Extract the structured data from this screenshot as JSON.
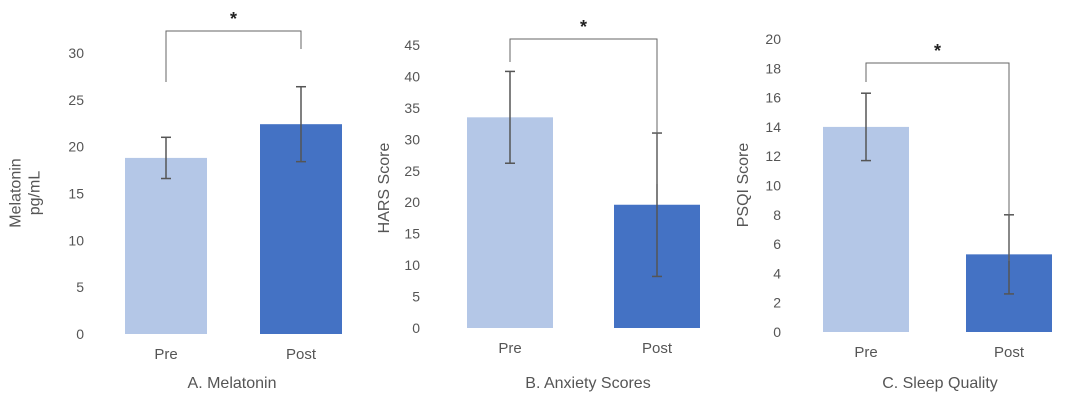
{
  "chart_data": [
    {
      "type": "bar",
      "caption": "A. Melatonin",
      "ylabel": [
        "Melatonin",
        "pg/mL"
      ],
      "categories": [
        "Pre",
        "Post"
      ],
      "values": [
        18.8,
        22.4
      ],
      "errors": [
        2.2,
        4.0
      ],
      "ylim": [
        0,
        30
      ],
      "yticks": [
        0,
        5,
        10,
        15,
        20,
        25,
        30
      ],
      "significance": "*",
      "colors": [
        "#b4c7e7",
        "#4472c4"
      ]
    },
    {
      "type": "bar",
      "caption": "B. Anxiety Scores",
      "ylabel": [
        "HARS Score"
      ],
      "categories": [
        "Pre",
        "Post"
      ],
      "values": [
        33.5,
        19.6
      ],
      "errors": [
        7.3,
        11.4
      ],
      "ylim": [
        0,
        45
      ],
      "yticks": [
        0,
        5,
        10,
        15,
        20,
        25,
        30,
        35,
        40,
        45
      ],
      "significance": "*",
      "colors": [
        "#b4c7e7",
        "#4472c4"
      ]
    },
    {
      "type": "bar",
      "caption": "C. Sleep Quality",
      "ylabel": [
        "PSQI Score"
      ],
      "categories": [
        "Pre",
        "Post"
      ],
      "values": [
        14.0,
        5.3
      ],
      "errors": [
        2.3,
        2.7
      ],
      "ylim": [
        0,
        20
      ],
      "yticks": [
        0,
        2,
        4,
        6,
        8,
        10,
        12,
        14,
        16,
        18,
        20
      ],
      "significance": "*",
      "colors": [
        "#b4c7e7",
        "#4472c4"
      ]
    }
  ]
}
